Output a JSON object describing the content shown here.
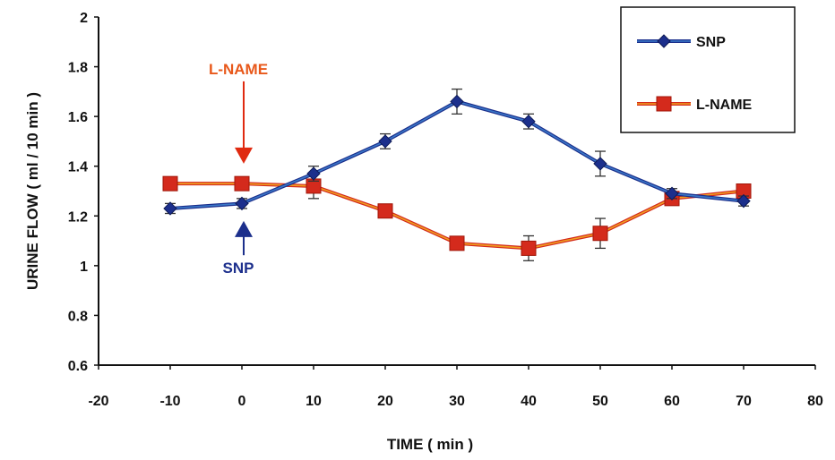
{
  "chart_data": {
    "type": "line",
    "title": "",
    "xlabel": "TIME ( min )",
    "ylabel": "URINE FLOW  ( ml / 10 min )",
    "xlim": [
      -20,
      80
    ],
    "ylim": [
      0.6,
      2
    ],
    "x_ticks": [
      "-20",
      "-10",
      "0",
      "10",
      "20",
      "30",
      "40",
      "50",
      "60",
      "70",
      "80"
    ],
    "y_ticks": [
      "0.6",
      "0.8",
      "1",
      "1.2",
      "1.4",
      "1.6",
      "1.8",
      "2"
    ],
    "grid": false,
    "legend_position": "top-right",
    "series": [
      {
        "name": "SNP",
        "color": "#1c2f8c",
        "line_color": "#3a78c8",
        "marker": "diamond",
        "x": [
          -10,
          0,
          10,
          20,
          30,
          40,
          50,
          60,
          70
        ],
        "values": [
          1.23,
          1.25,
          1.37,
          1.5,
          1.66,
          1.58,
          1.41,
          1.29,
          1.26
        ],
        "error": [
          0.02,
          0.02,
          0.03,
          0.03,
          0.05,
          0.03,
          0.05,
          0.02,
          0.02
        ]
      },
      {
        "name": "L-NAME",
        "color": "#d42a1c",
        "line_color": "#f0a020",
        "marker": "square",
        "x": [
          -10,
          0,
          10,
          20,
          30,
          40,
          50,
          60,
          70
        ],
        "values": [
          1.33,
          1.33,
          1.32,
          1.22,
          1.09,
          1.07,
          1.13,
          1.27,
          1.3
        ],
        "error": [
          0.0,
          0.0,
          0.05,
          0.0,
          0.0,
          0.05,
          0.06,
          0.0,
          0.0
        ]
      }
    ],
    "annotations": [
      {
        "text": "L-NAME",
        "x": 0,
        "y": 1.77,
        "color": "#e8581a",
        "arrow_to_y": 1.41,
        "arrow_color": "#e02a10",
        "direction": "down"
      },
      {
        "text": "SNP",
        "x": 0,
        "y": 0.97,
        "color": "#1c2f8c",
        "arrow_to_y": 1.18,
        "arrow_color": "#1c2f8c",
        "direction": "up"
      }
    ]
  }
}
